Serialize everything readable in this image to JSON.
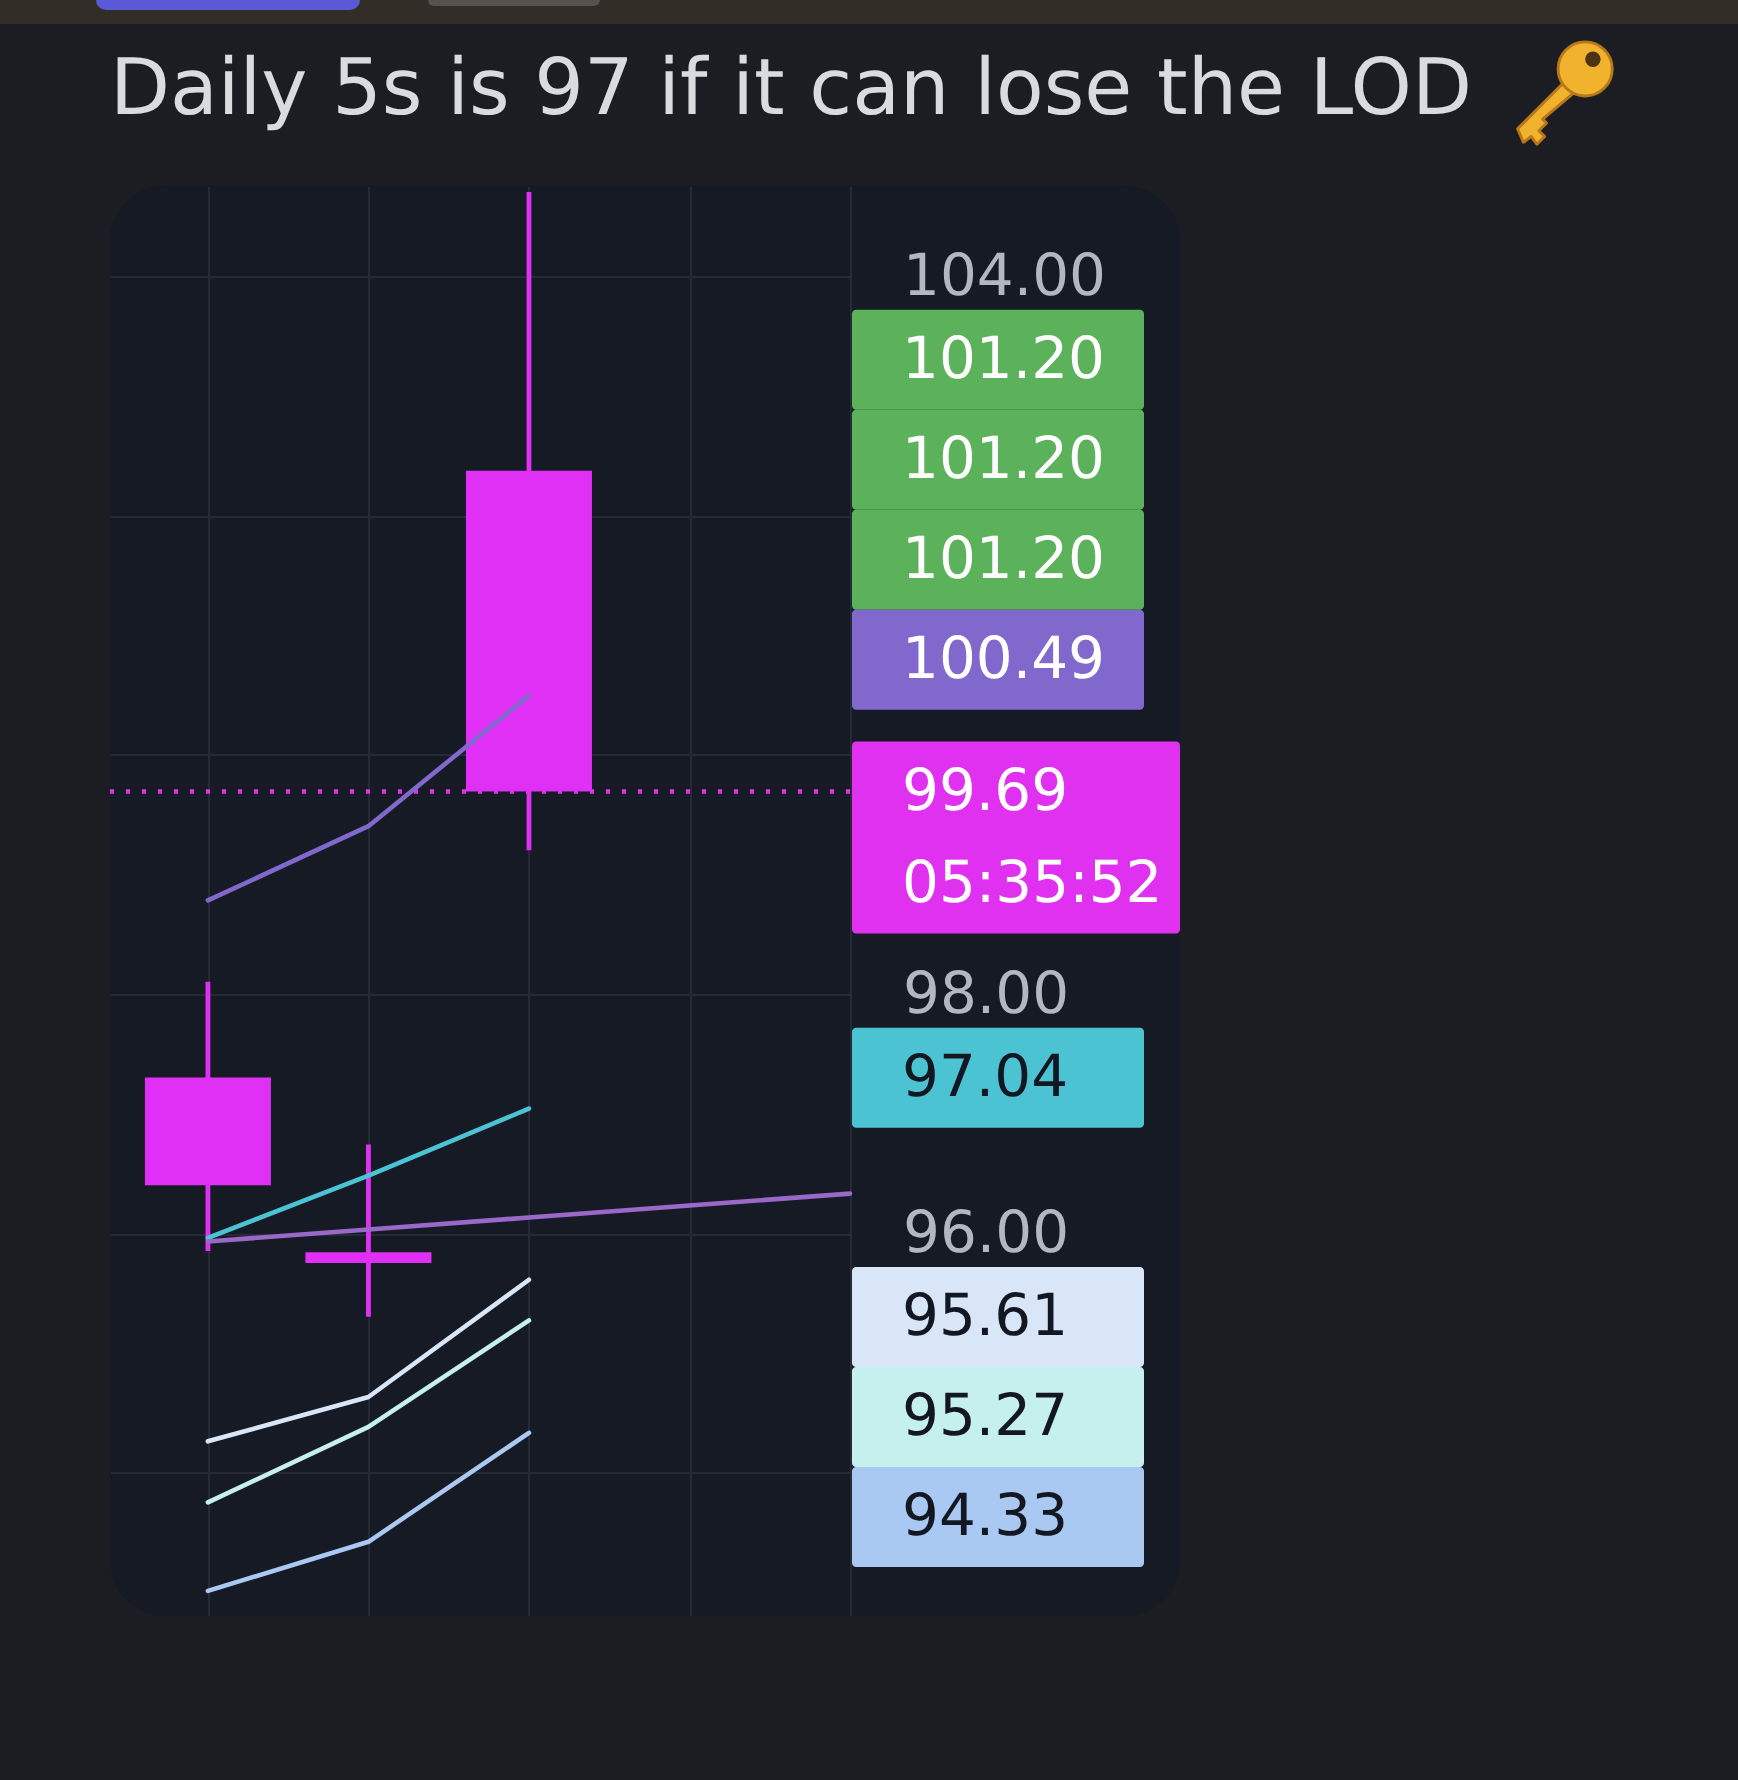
{
  "chart_data": {
    "type": "candlestick",
    "title": "Daily 5s is 97 if it can lose the LOD",
    "categories": [
      null,
      null,
      null,
      null,
      null
    ],
    "ohlc": [
      [
        97.3,
        98.1,
        95.85,
        96.4
      ],
      [
        95.84,
        96.74,
        95.3,
        95.75
      ],
      [
        102.37,
        104.7,
        99.2,
        99.69
      ],
      null,
      null
    ],
    "color": "#e030f5",
    "series": [
      {
        "type": "line",
        "color": "#8068cc",
        "values": [
          98.78,
          99.4,
          100.49,
          null,
          null
        ]
      },
      {
        "type": "line",
        "color": "#4cc3d3",
        "values": [
          95.96,
          96.48,
          97.04,
          null,
          null
        ]
      },
      {
        "type": "line",
        "color": "#9a68c8",
        "values": [
          95.93,
          96.03,
          96.13,
          96.23,
          96.33
        ]
      },
      {
        "type": "line",
        "color": "#d8e6f8",
        "values": [
          94.26,
          94.63,
          95.61,
          null,
          null
        ]
      },
      {
        "type": "line",
        "color": "#c6f0ee",
        "values": [
          93.75,
          94.38,
          95.27,
          null,
          null
        ]
      },
      {
        "type": "line",
        "color": "#a9c8f2",
        "values": [
          93.01,
          93.42,
          94.33,
          null,
          null
        ]
      }
    ],
    "annotations": [
      "101.20",
      "101.20",
      "101.20",
      "100.49",
      "97.04",
      "95.61",
      "95.27",
      "94.33"
    ],
    "ylim": [
      92.8,
      104.75
    ],
    "yticks": [
      {
        "value": 104,
        "label": "104.00"
      },
      {
        "value": 102,
        "label": null
      },
      {
        "value": 100,
        "label": null
      },
      {
        "value": 98,
        "label": "98.00"
      },
      {
        "value": 96,
        "label": "96.00"
      },
      {
        "value": 94,
        "label": null
      }
    ],
    "ref_lines": [
      {
        "axis": "y",
        "value": 99.69,
        "label": "99.69\n05:35:52",
        "color": "#e030f0",
        "line_style": "dotted"
      }
    ],
    "grid": true,
    "tick_labels": "y"
  }
}
